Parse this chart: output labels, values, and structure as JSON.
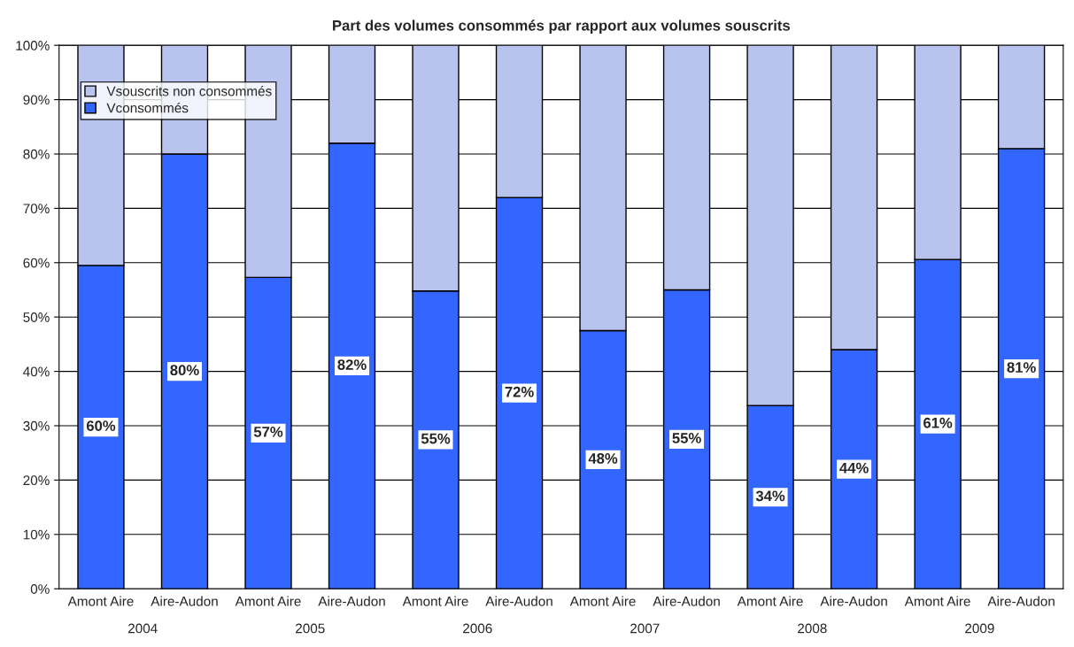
{
  "chart_data": {
    "type": "bar",
    "stacked": true,
    "title": "Part des volumes consommés par rapport aux volumes souscrits",
    "categories": [
      "Amont Aire",
      "Aire-Audon",
      "Amont Aire",
      "Aire-Audon",
      "Amont Aire",
      "Aire-Audon",
      "Amont Aire",
      "Aire-Audon",
      "Amont Aire",
      "Aire-Audon",
      "Amont Aire",
      "Aire-Audon"
    ],
    "series": [
      {
        "name": "Vconsommés",
        "color": "#3366ff",
        "values": [
          59.5,
          80,
          57.3,
          82,
          54.8,
          72,
          47.5,
          55,
          33.7,
          44,
          60.6,
          81
        ],
        "value_labels": [
          "60%",
          "80%",
          "57%",
          "82%",
          "55%",
          "72%",
          "48%",
          "55%",
          "34%",
          "44%",
          "61%",
          "81%"
        ]
      },
      {
        "name": "Vsouscrits non consommés",
        "color": "#b8c4ee",
        "values": [
          40.5,
          20,
          42.7,
          18,
          45.2,
          28,
          52.5,
          45,
          66.3,
          56,
          39.4,
          19
        ]
      }
    ],
    "ylim": [
      0,
      100
    ],
    "yticks": [
      {
        "value": 0,
        "label": "0%"
      },
      {
        "value": 10,
        "label": "10%"
      },
      {
        "value": 20,
        "label": "20%"
      },
      {
        "value": 30,
        "label": "30%"
      },
      {
        "value": 40,
        "label": "40%"
      },
      {
        "value": 50,
        "label": "50%"
      },
      {
        "value": 60,
        "label": "60%"
      },
      {
        "value": 70,
        "label": "70%"
      },
      {
        "value": 80,
        "label": "80%"
      },
      {
        "value": 90,
        "label": "90%"
      },
      {
        "value": 100,
        "label": "100%"
      }
    ],
    "grid": "y",
    "legend": "top left",
    "annotations": [
      "2004",
      "2005",
      "2006",
      "2007",
      "2008",
      "2009"
    ]
  }
}
